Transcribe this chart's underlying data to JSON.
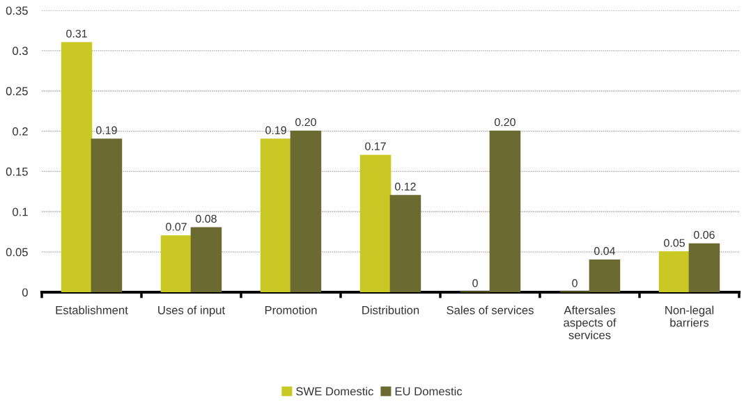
{
  "chart_data": {
    "type": "bar",
    "categories": [
      "Establishment",
      "Uses of input",
      "Promotion",
      "Distribution",
      "Sales of services",
      "Aftersales aspects of services",
      "Non-legal barriers"
    ],
    "series": [
      {
        "name": "SWE Domestic",
        "color": "#c9c824",
        "values": [
          0.31,
          0.07,
          0.19,
          0.17,
          0,
          0,
          0.05
        ],
        "value_labels": [
          "0.31",
          "0.07",
          "0.19",
          "0.17",
          "0",
          "0",
          "0.05"
        ]
      },
      {
        "name": "EU Domestic",
        "color": "#6b6a30",
        "values": [
          0.19,
          0.08,
          0.2,
          0.12,
          0.2,
          0.04,
          0.06
        ],
        "value_labels": [
          "0.19",
          "0.08",
          "0.20",
          "0.12",
          "0.20",
          "0.04",
          "0.06"
        ]
      }
    ],
    "ylim": [
      0,
      0.35
    ],
    "yticks": [
      0,
      0.05,
      0.1,
      0.15,
      0.2,
      0.25,
      0.3,
      0.35
    ],
    "grid": "y",
    "legend": "bottom"
  }
}
